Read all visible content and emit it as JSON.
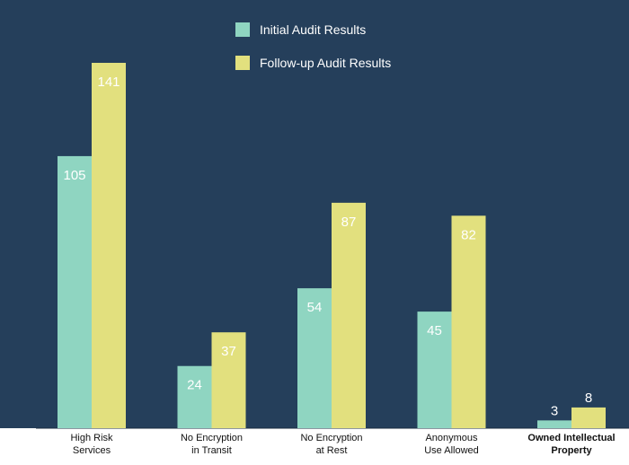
{
  "colors": {
    "background": "#253f5b",
    "initial": "#8fd5c1",
    "followup": "#e2e07e",
    "axis_band": "#ffffff"
  },
  "chart_data": {
    "type": "bar",
    "categories": [
      [
        "High Risk",
        "Services"
      ],
      [
        "No Encryption",
        "in Transit"
      ],
      [
        "No Encryption",
        "at Rest"
      ],
      [
        "Anonymous",
        "Use Allowed"
      ],
      [
        "Owned Intellectual",
        "Property"
      ]
    ],
    "series": [
      {
        "name": "Initial Audit Results",
        "values": [
          105,
          24,
          54,
          45,
          3
        ]
      },
      {
        "name": "Follow-up Audit Results",
        "values": [
          141,
          37,
          87,
          82,
          8
        ]
      }
    ],
    "ylim": [
      0,
      141
    ],
    "grid": false,
    "legend": "top-center",
    "title": "",
    "xlabel": "",
    "ylabel": ""
  }
}
